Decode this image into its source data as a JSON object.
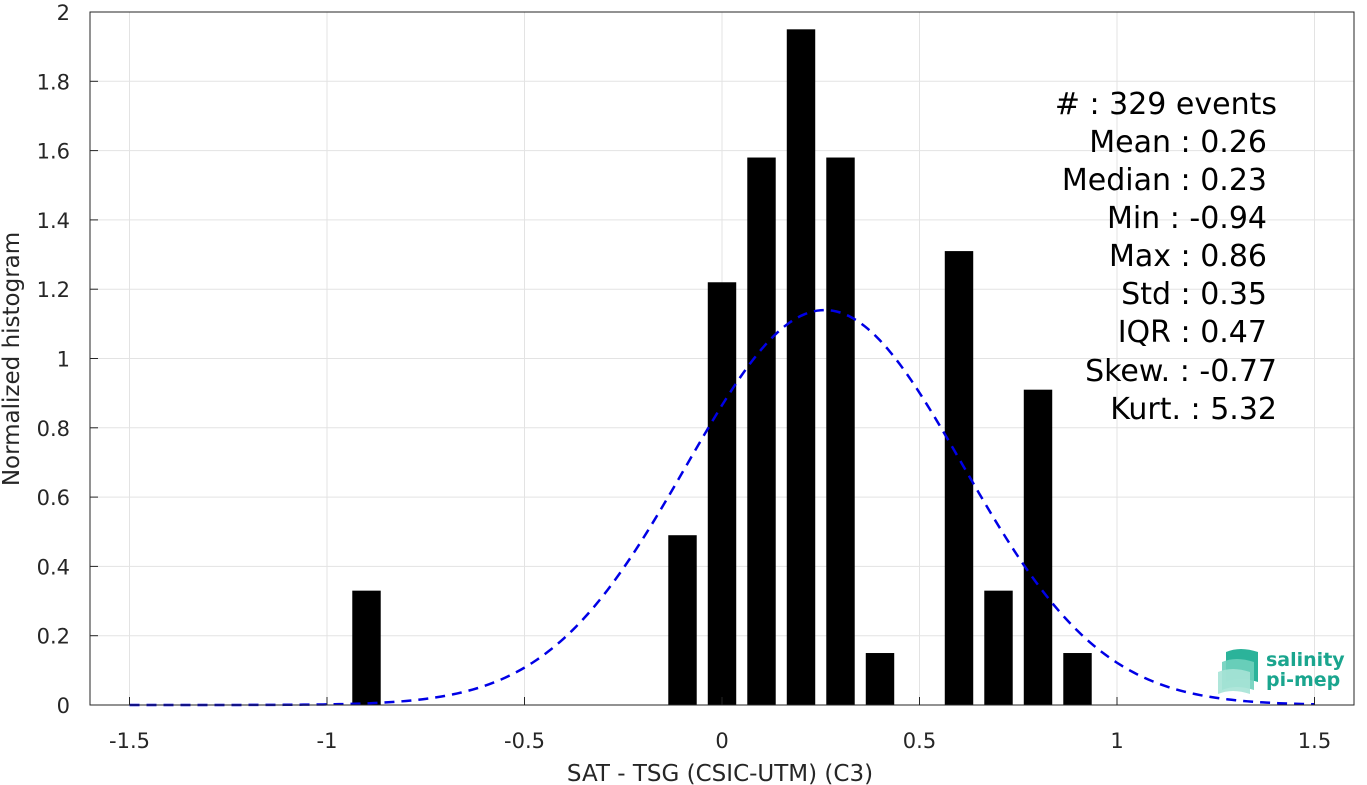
{
  "chart_data": {
    "type": "bar",
    "xlabel": "SAT - TSG (CSIC-UTM) (C3)",
    "ylabel": "Normalized histogram",
    "xlim": [
      -1.6,
      1.6
    ],
    "ylim": [
      0,
      2
    ],
    "grid": true,
    "xticks": [
      "-1.5",
      "-1",
      "-0.5",
      "0",
      "0.5",
      "1",
      "1.5"
    ],
    "yticks": [
      "0",
      "0.2",
      "0.4",
      "0.6",
      "0.8",
      "1",
      "1.2",
      "1.4",
      "1.6",
      "1.8",
      "2"
    ],
    "bin_width": 0.1,
    "bars": [
      {
        "x": -0.9,
        "value": 0.33
      },
      {
        "x": -0.1,
        "value": 0.49
      },
      {
        "x": 0.0,
        "value": 1.22
      },
      {
        "x": 0.1,
        "value": 1.58
      },
      {
        "x": 0.2,
        "value": 1.95
      },
      {
        "x": 0.3,
        "value": 1.58
      },
      {
        "x": 0.4,
        "value": 0.15
      },
      {
        "x": 0.6,
        "value": 1.31
      },
      {
        "x": 0.7,
        "value": 0.33
      },
      {
        "x": 0.8,
        "value": 0.91
      },
      {
        "x": 0.9,
        "value": 0.15
      }
    ],
    "fit_curve": {
      "style": "dashed",
      "color": "#0000e6",
      "mean": 0.26,
      "std": 0.35,
      "x_range": [
        -1.5,
        1.5
      ]
    },
    "bar_color": "#000000"
  },
  "stats": [
    {
      "label": "#  : 329 events"
    },
    {
      "label": "Mean : 0.26"
    },
    {
      "label": "Median : 0.23"
    },
    {
      "label": "Min : -0.94"
    },
    {
      "label": "Max : 0.86"
    },
    {
      "label": "Std : 0.35"
    },
    {
      "label": "IQR : 0.47"
    },
    {
      "label": "Skew. : -0.77"
    },
    {
      "label": "Kurt. : 5.32"
    }
  ],
  "logo": {
    "line1": "salinity",
    "line2": "pi-mep",
    "icon": "salinity-waves-icon"
  }
}
